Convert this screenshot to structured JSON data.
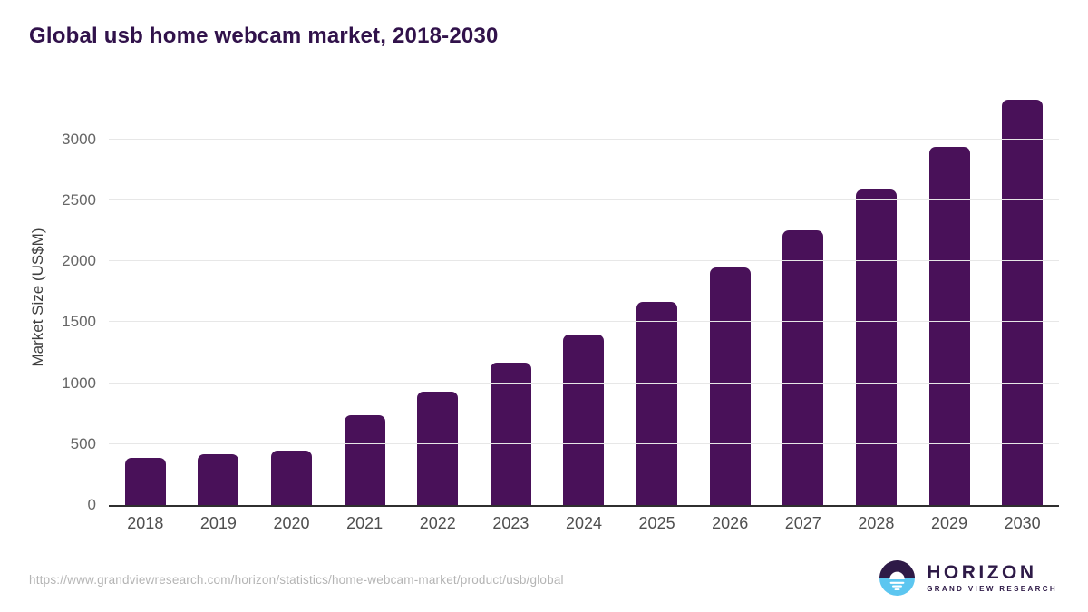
{
  "title": "Global usb home webcam market, 2018-2030",
  "colors": {
    "bar": "#491159",
    "title_text": "#31124b",
    "grid": "#e7e7e7",
    "axis_line": "#2f2f2f",
    "tick_text": "#666666",
    "xlabel_text": "#4f4f4f",
    "url_text": "#b4b4b4",
    "logo_purple": "#2e1a47",
    "logo_blue": "#5cc6f0"
  },
  "chart_data": {
    "type": "bar",
    "categories": [
      "2018",
      "2019",
      "2020",
      "2021",
      "2022",
      "2023",
      "2024",
      "2025",
      "2026",
      "2027",
      "2028",
      "2029",
      "2030"
    ],
    "values": [
      385,
      418,
      448,
      734,
      933,
      1166,
      1399,
      1664,
      1949,
      2252,
      2589,
      2937,
      3323
    ],
    "title": "Global usb home webcam market, 2018-2030",
    "xlabel": "",
    "ylabel": "Market Size (US$M)",
    "ylim": [
      0,
      3400
    ],
    "yticks": [
      0,
      500,
      1000,
      1500,
      2000,
      2500,
      3000
    ],
    "grid": true,
    "legend": false,
    "bar_color": "#491159"
  },
  "footer": {
    "source_url": "https://www.grandviewresearch.com/horizon/statistics/home-webcam-market/product/usb/global",
    "logo_name": "HORIZON",
    "logo_subtitle": "GRAND VIEW RESEARCH"
  }
}
